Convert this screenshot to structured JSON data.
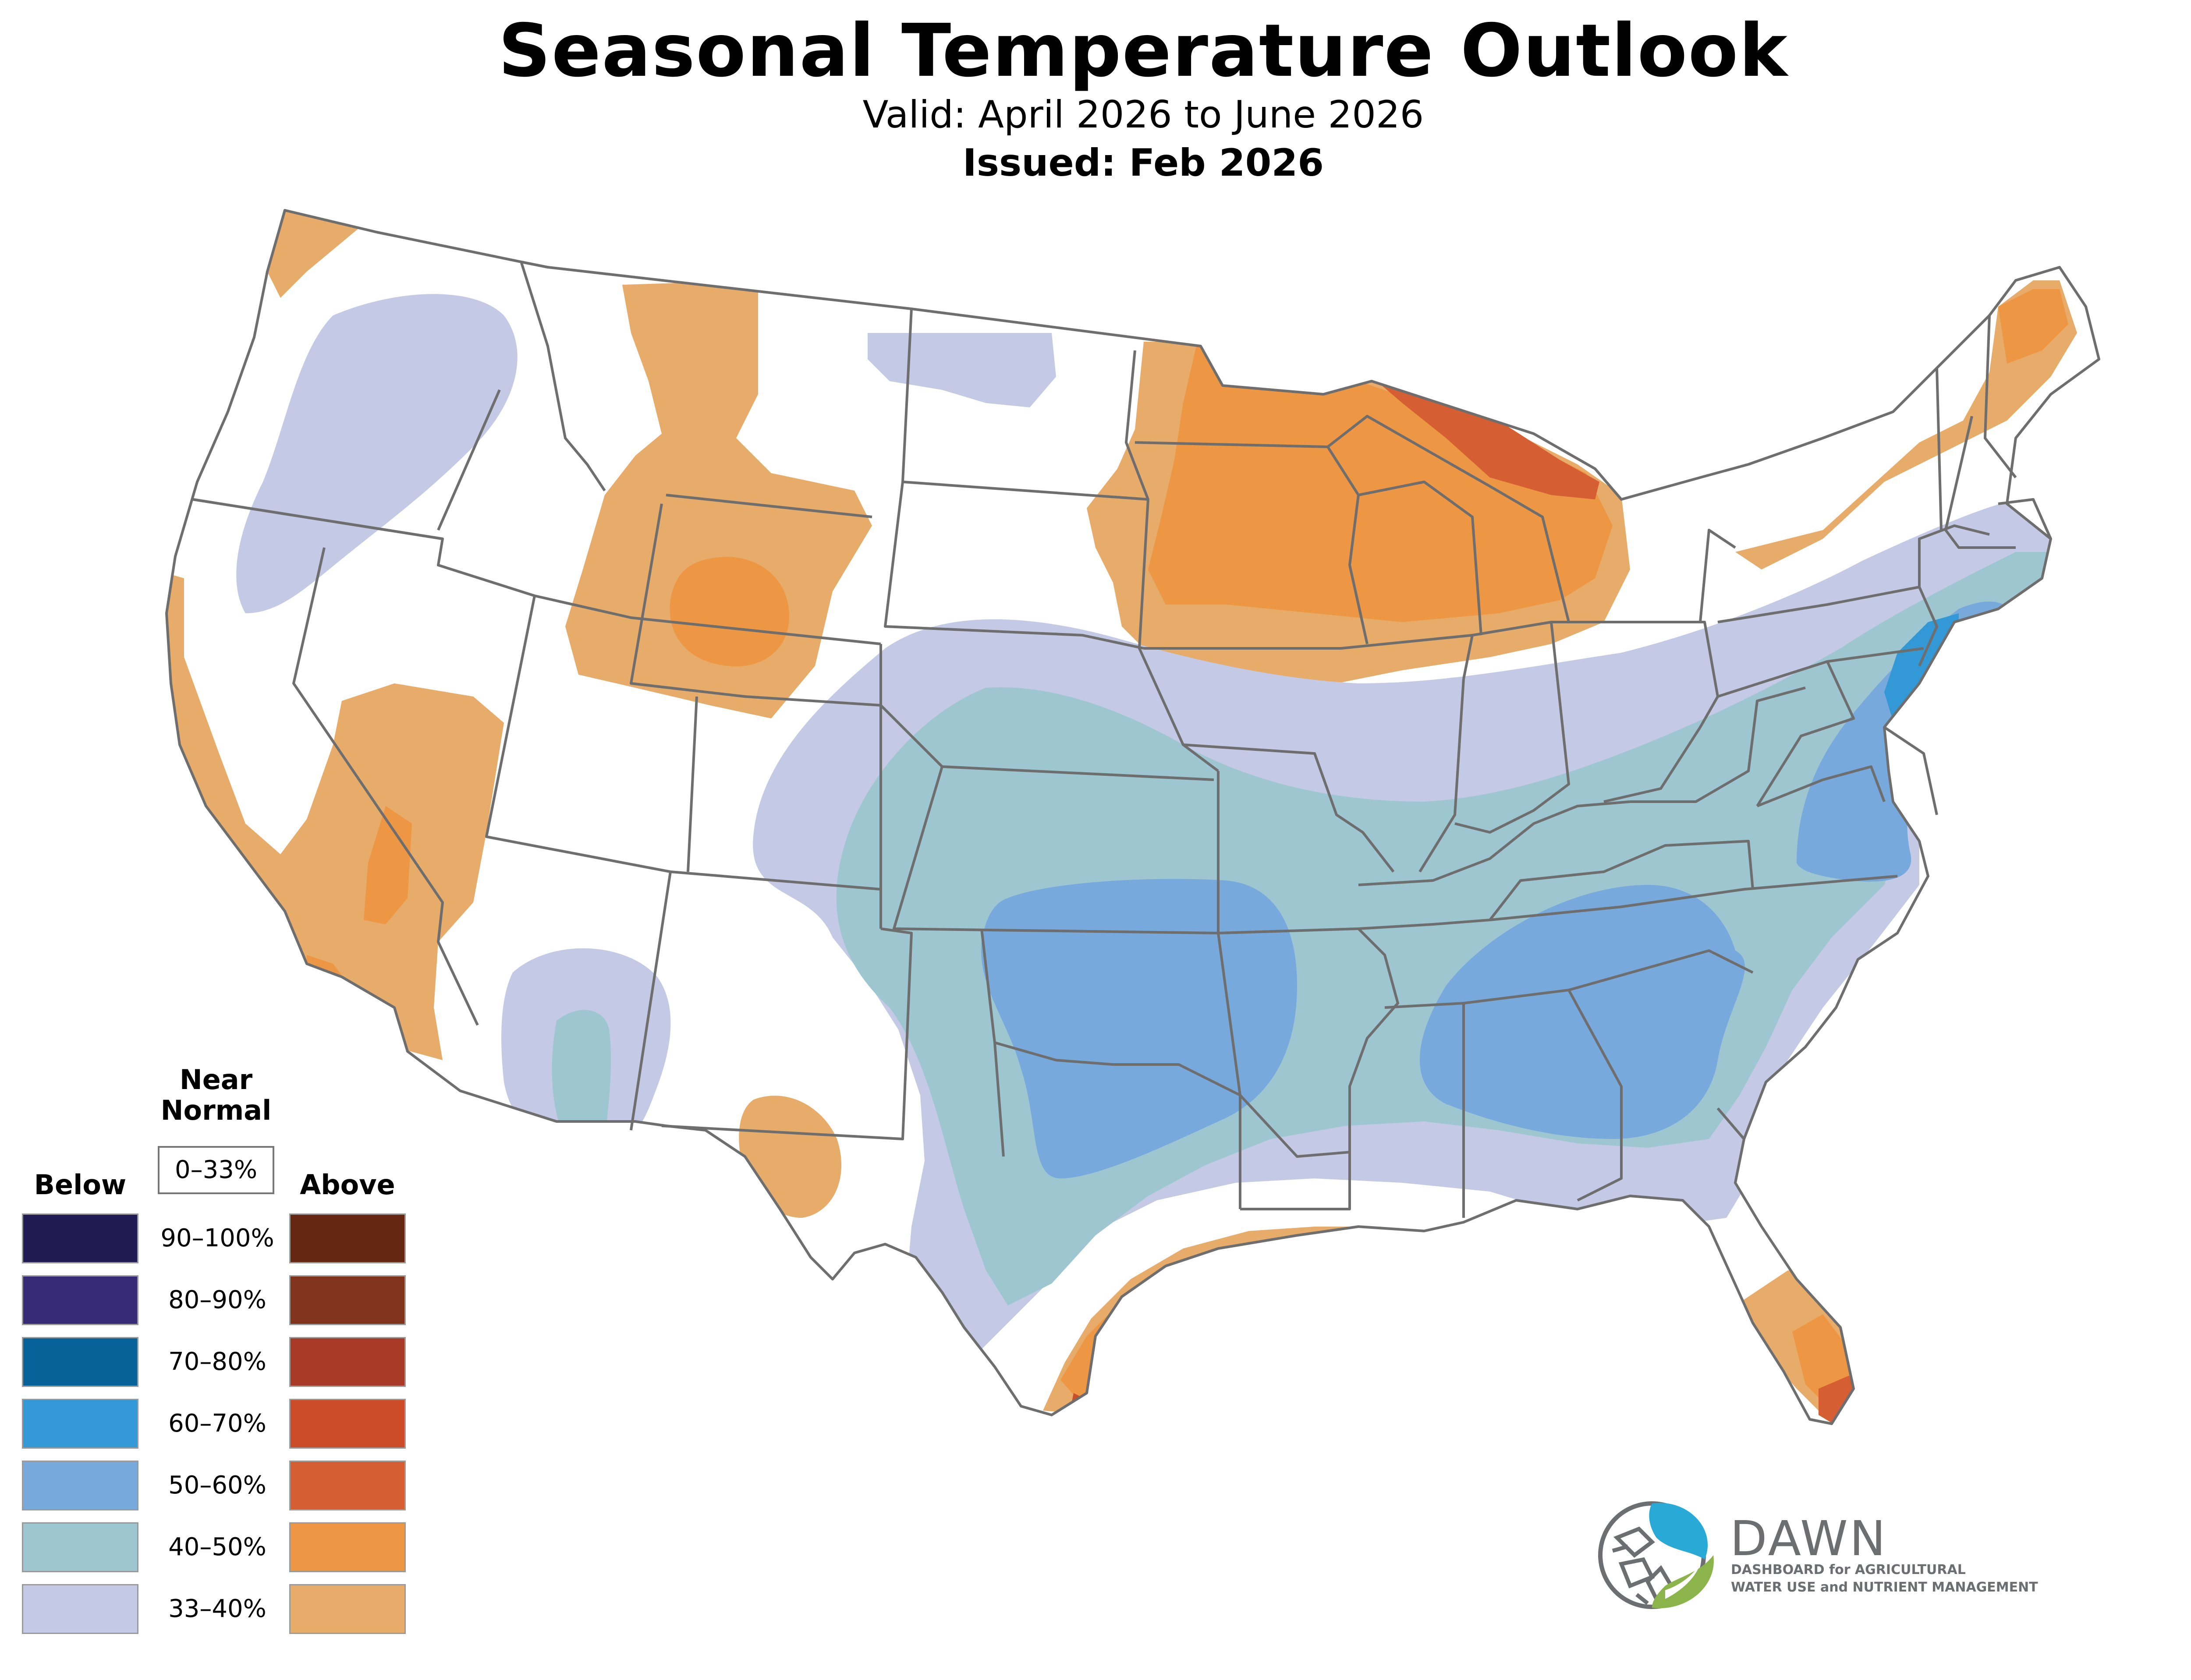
{
  "header": {
    "title": "Seasonal Temperature Outlook",
    "valid": "Valid: April 2026 to June 2026",
    "issued": "Issued: Feb 2026"
  },
  "legend": {
    "near_normal_line1": "Near",
    "near_normal_line2": "Normal",
    "near_normal_range": "0–33%",
    "below_label": "Below",
    "above_label": "Above",
    "ranges": [
      "90–100%",
      "80–90%",
      "70–80%",
      "60–70%",
      "50–60%",
      "40–50%",
      "33–40%"
    ],
    "below_colors": [
      "#201c52",
      "#352a73",
      "#07629a",
      "#3399d6",
      "#78a9dc",
      "#9dc6d1",
      "#c4cae5"
    ],
    "above_colors": [
      "#652712",
      "#80341c",
      "#a83a27",
      "#cc4c2a",
      "#d55f33",
      "#ed9644",
      "#e7ab6a"
    ]
  },
  "colors": {
    "below_33_40": "#c4cae5",
    "below_40_50": "#9dc6d1",
    "below_50_60": "#78a9dc",
    "below_60_70": "#3399d6",
    "above_33_40": "#e7ab6a",
    "above_40_50": "#ed9644",
    "above_50_60": "#d55f33",
    "above_60_70": "#cc4c2a",
    "border": "#6e6e6e"
  },
  "logo": {
    "name": "DAWN",
    "tagline_line1": "DASHBOARD for AGRICULTURAL",
    "tagline_line2": "WATER USE and NUTRIENT MANAGEMENT"
  }
}
